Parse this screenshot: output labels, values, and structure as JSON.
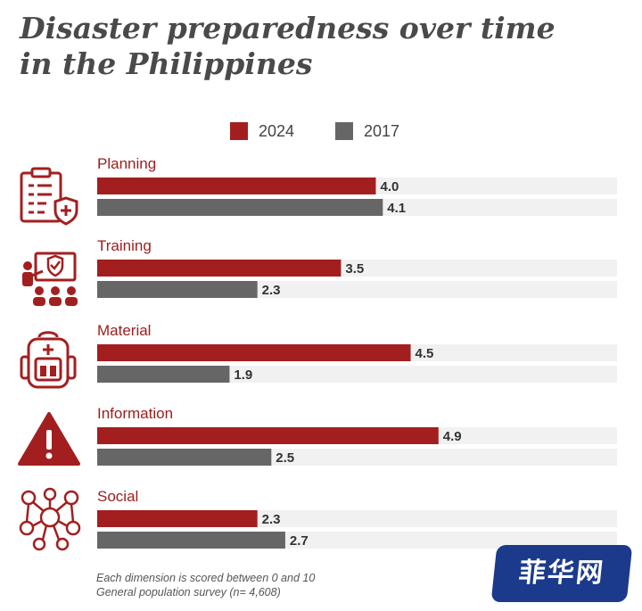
{
  "title_line1": "Disaster preparedness over time",
  "title_line2": "in the Philippines",
  "legend": [
    {
      "label": "2024",
      "color": "#a31f1f"
    },
    {
      "label": "2017",
      "color": "#666666"
    }
  ],
  "notes": [
    "Each dimension is scored between 0 and 10",
    "General population survey (n= 4,608)"
  ],
  "watermark": "菲华网",
  "chart_data": {
    "type": "bar",
    "orientation": "horizontal",
    "categories": [
      "Planning",
      "Training",
      "Material",
      "Information",
      "Social"
    ],
    "icons": [
      "clipboard-shield-icon",
      "training-people-icon",
      "first-aid-backpack-icon",
      "warning-triangle-icon",
      "social-network-icon"
    ],
    "series": [
      {
        "name": "2024",
        "values": [
          4.0,
          3.5,
          4.5,
          4.9,
          2.3
        ],
        "color": "#a31f1f"
      },
      {
        "name": "2017",
        "values": [
          4.1,
          2.3,
          1.9,
          2.5,
          2.7
        ],
        "color": "#666666"
      }
    ],
    "xlim": [
      0,
      10
    ],
    "value_labels": true,
    "grid": false,
    "legend_position": "top-center"
  }
}
